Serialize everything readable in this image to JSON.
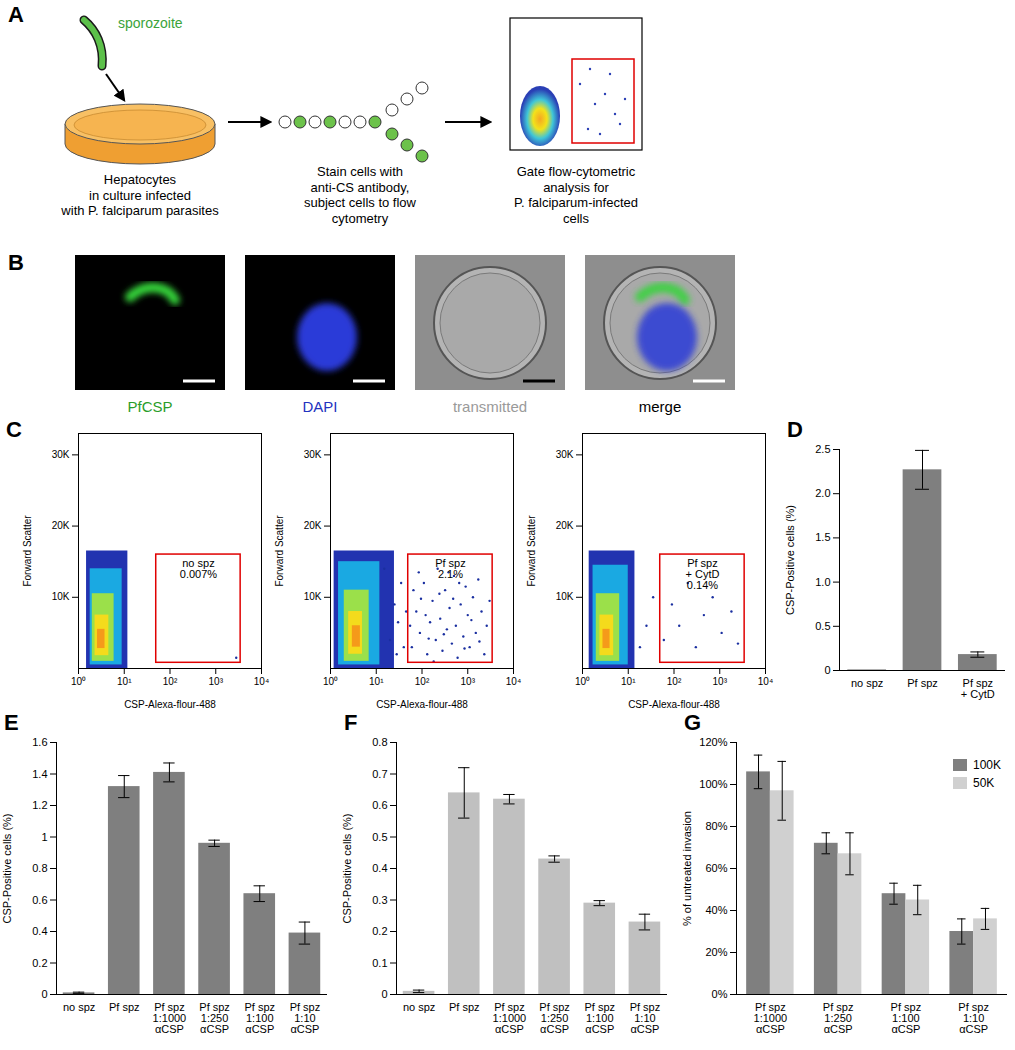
{
  "diagram": {
    "label": "A",
    "sporozoite": "sporozoite",
    "steps": [
      "Hepatocytes\nin culture infected\nwith P. falciparum parasites",
      "Stain cells with\nanti-CS antibody,\nsubject cells to flow\ncytometry",
      "Gate flow-cytometric\nanalysis for\nP. falciparum-infected\ncells"
    ]
  },
  "images": {
    "label": "B",
    "panels": [
      "PfCSP",
      "DAPI",
      "transmitted",
      "merge"
    ]
  },
  "chart_data": [
    {
      "type": "scatter",
      "title": "C",
      "x_label": "CSP-Alexa-flour-488",
      "y_label": "Forward Scatter",
      "log": "x",
      "xlim": [
        1,
        10000
      ],
      "ylim": [
        0,
        33000
      ],
      "xticks": [
        {
          "value": 1,
          "label": "10⁰"
        },
        {
          "value": 10,
          "label": "10¹"
        },
        {
          "value": 100,
          "label": "10²"
        },
        {
          "value": 1000,
          "label": "10³"
        },
        {
          "value": 10000,
          "label": "10⁴"
        }
      ],
      "yticks": [
        {
          "value": 10000,
          "label": "10K"
        },
        {
          "value": 20000,
          "label": "20K"
        },
        {
          "value": 30000,
          "label": "30K"
        }
      ],
      "density_cells": [
        {
          "x": [
            1.5,
            12
          ],
          "y": [
            0,
            16500
          ],
          "density": 0.1
        },
        {
          "x": [
            1.8,
            9
          ],
          "y": [
            500,
            14000
          ],
          "density": 0.3
        },
        {
          "x": [
            2,
            6
          ],
          "y": [
            1000,
            10500
          ],
          "density": 0.55
        },
        {
          "x": [
            2.3,
            4.6
          ],
          "y": [
            1800,
            7500
          ],
          "density": 0.8
        },
        {
          "x": [
            2.6,
            3.8
          ],
          "y": [
            2800,
            5500
          ],
          "density": 1
        }
      ],
      "points": [
        [
          2800,
          1500
        ]
      ],
      "gate": {
        "x": [
          50,
          3500
        ],
        "y": [
          800,
          16000
        ]
      },
      "annotations": [
        "no spz",
        "0.007%"
      ]
    },
    {
      "type": "scatter",
      "x_label": "CSP-Alexa-flour-488",
      "y_label": "Forward Scatter",
      "log": "x",
      "xlim": [
        1,
        10000
      ],
      "ylim": [
        0,
        33000
      ],
      "xticks": [
        {
          "value": 1,
          "label": "10⁰"
        },
        {
          "value": 10,
          "label": "10¹"
        },
        {
          "value": 100,
          "label": "10²"
        },
        {
          "value": 1000,
          "label": "10³"
        },
        {
          "value": 10000,
          "label": "10⁴"
        }
      ],
      "yticks": [
        {
          "value": 10000,
          "label": "10K"
        },
        {
          "value": 20000,
          "label": "20K"
        },
        {
          "value": 30000,
          "label": "30K"
        }
      ],
      "density_cells": [
        {
          "x": [
            1.2,
            25
          ],
          "y": [
            0,
            16500
          ],
          "density": 0.1
        },
        {
          "x": [
            1.5,
            12
          ],
          "y": [
            500,
            15000
          ],
          "density": 0.3
        },
        {
          "x": [
            2,
            7
          ],
          "y": [
            1000,
            11000
          ],
          "density": 0.55
        },
        {
          "x": [
            2.5,
            5
          ],
          "y": [
            2000,
            8000
          ],
          "density": 0.8
        },
        {
          "x": [
            3,
            4.5
          ],
          "y": [
            3000,
            6000
          ],
          "density": 1
        }
      ],
      "points": [
        [
          60,
          3000
        ],
        [
          75,
          8000
        ],
        [
          90,
          5000
        ],
        [
          110,
          12000
        ],
        [
          130,
          2000
        ],
        [
          150,
          6500
        ],
        [
          170,
          9500
        ],
        [
          200,
          4000
        ],
        [
          220,
          14000
        ],
        [
          250,
          7000
        ],
        [
          280,
          2500
        ],
        [
          320,
          11000
        ],
        [
          350,
          5500
        ],
        [
          400,
          8500
        ],
        [
          450,
          3500
        ],
        [
          500,
          13000
        ],
        [
          550,
          6000
        ],
        [
          600,
          1500
        ],
        [
          700,
          9000
        ],
        [
          800,
          4500
        ],
        [
          900,
          11500
        ],
        [
          1000,
          7500
        ],
        [
          1100,
          3000
        ],
        [
          1300,
          10000
        ],
        [
          1500,
          5000
        ],
        [
          1700,
          12500
        ],
        [
          2000,
          8000
        ],
        [
          2300,
          2000
        ],
        [
          2600,
          6000
        ],
        [
          3000,
          9500
        ],
        [
          65,
          11000
        ],
        [
          85,
          13500
        ],
        [
          120,
          7500
        ],
        [
          180,
          1000
        ],
        [
          240,
          10500
        ],
        [
          300,
          4800
        ],
        [
          380,
          13500
        ],
        [
          480,
          9800
        ],
        [
          650,
          12000
        ],
        [
          850,
          2800
        ],
        [
          1200,
          6800
        ],
        [
          1800,
          3800
        ],
        [
          140,
          4200
        ],
        [
          95,
          9800
        ],
        [
          55,
          6000
        ],
        [
          20,
          4000
        ],
        [
          25,
          9000
        ],
        [
          30,
          6500
        ],
        [
          35,
          12000
        ],
        [
          40,
          3000
        ],
        [
          45,
          8000
        ],
        [
          15,
          14000
        ],
        [
          28,
          2000
        ]
      ],
      "gate": {
        "x": [
          50,
          3500
        ],
        "y": [
          800,
          16000
        ]
      },
      "annotations": [
        "Pf spz",
        "2.1%"
      ]
    },
    {
      "type": "scatter",
      "x_label": "CSP-Alexa-flour-488",
      "y_label": "Forward Scatter",
      "log": "x",
      "xlim": [
        1,
        10000
      ],
      "ylim": [
        0,
        33000
      ],
      "xticks": [
        {
          "value": 1,
          "label": "10⁰"
        },
        {
          "value": 10,
          "label": "10¹"
        },
        {
          "value": 100,
          "label": "10²"
        },
        {
          "value": 1000,
          "label": "10³"
        },
        {
          "value": 10000,
          "label": "10⁴"
        }
      ],
      "yticks": [
        {
          "value": 10000,
          "label": "10K"
        },
        {
          "value": 20000,
          "label": "20K"
        },
        {
          "value": 30000,
          "label": "30K"
        }
      ],
      "density_cells": [
        {
          "x": [
            1.4,
            14
          ],
          "y": [
            0,
            16500
          ],
          "density": 0.1
        },
        {
          "x": [
            1.7,
            10
          ],
          "y": [
            500,
            14500
          ],
          "density": 0.3
        },
        {
          "x": [
            2,
            6.5
          ],
          "y": [
            1000,
            10500
          ],
          "density": 0.55
        },
        {
          "x": [
            2.4,
            4.8
          ],
          "y": [
            1800,
            7500
          ],
          "density": 0.8
        },
        {
          "x": [
            2.8,
            4
          ],
          "y": [
            2800,
            5500
          ],
          "density": 1
        }
      ],
      "points": [
        [
          60,
          4000
        ],
        [
          90,
          9000
        ],
        [
          130,
          6000
        ],
        [
          200,
          12000
        ],
        [
          300,
          3000
        ],
        [
          450,
          7500
        ],
        [
          700,
          10000
        ],
        [
          1100,
          5000
        ],
        [
          1800,
          8000
        ],
        [
          2500,
          3500
        ],
        [
          25,
          6000
        ],
        [
          35,
          10000
        ],
        [
          18,
          3000
        ]
      ],
      "gate": {
        "x": [
          50,
          3500
        ],
        "y": [
          800,
          16000
        ]
      },
      "annotations": [
        "Pf spz\n+ CytD",
        "0.14%"
      ]
    },
    {
      "type": "bar",
      "title": "D",
      "categories": [
        "no spz",
        "Pf spz",
        "Pf spz\n+ CytD"
      ],
      "values": [
        0.007,
        2.27,
        0.18
      ],
      "errors": [
        null,
        0.22,
        0.03
      ],
      "color": "#7f7f7f",
      "y_label": "CSP-Positive cells (%)",
      "ylim": [
        0,
        2.5
      ],
      "yticks": [
        0,
        0.5,
        {
          "value": 1,
          "label": "1.0"
        },
        1.5,
        {
          "value": 2,
          "label": "2.0"
        },
        2.5
      ]
    },
    {
      "type": "bar",
      "title": "E",
      "categories": [
        "no spz",
        "Pf spz",
        "Pf spz\n1:1000\nαCSP",
        "Pf spz\n1:250\nαCSP",
        "Pf spz\n1:100\nαCSP",
        "Pf spz\n1:10\nαCSP"
      ],
      "values": [
        0.01,
        1.32,
        1.41,
        0.96,
        0.64,
        0.39
      ],
      "errors": [
        0.005,
        0.07,
        0.06,
        0.02,
        0.05,
        0.07
      ],
      "color": "#7f7f7f",
      "y_label": "CSP-Positive cells (%)",
      "ylim": [
        0,
        1.6
      ],
      "yticks": [
        0,
        0.2,
        0.4,
        0.6,
        0.8,
        1,
        1.2,
        1.4,
        1.6
      ]
    },
    {
      "type": "bar",
      "title": "F",
      "categories": [
        "no spz",
        "Pf spz",
        "Pf spz\n1:1000\nαCSP",
        "Pf spz\n1:250\nαCSP",
        "Pf spz\n1:100\nαCSP",
        "Pf spz\n1:10\nαCSP"
      ],
      "values": [
        0.01,
        0.64,
        0.62,
        0.43,
        0.29,
        0.23
      ],
      "errors": [
        0.004,
        0.08,
        0.015,
        0.01,
        0.008,
        0.025
      ],
      "color": "#c0c0c0",
      "y_label": "CSP-Positive cells (%)",
      "ylim": [
        0,
        0.8
      ],
      "yticks": [
        0,
        0.1,
        0.2,
        0.3,
        0.4,
        0.5,
        0.6,
        0.7,
        0.8
      ]
    },
    {
      "type": "bar",
      "title": "G",
      "categories": [
        "Pf spz\n1:1000\nαCSP",
        "Pf spz\n1:250\nαCSP",
        "Pf spz\n1:100\nαCSP",
        "Pf spz\n1:10\nαCSP"
      ],
      "series": [
        {
          "name": "100K",
          "color": "#7f7f7f",
          "values": [
            106,
            72,
            48,
            30
          ],
          "errors": [
            8,
            5,
            5,
            6
          ]
        },
        {
          "name": "50K",
          "color": "#d0d0d0",
          "values": [
            97,
            67,
            45,
            36
          ],
          "errors": [
            14,
            10,
            7,
            5
          ]
        }
      ],
      "y_label": "% of untreated invasion",
      "ylim": [
        0,
        120
      ],
      "yticks": [
        {
          "value": 0,
          "label": "0%"
        },
        {
          "value": 20,
          "label": "20%"
        },
        {
          "value": 40,
          "label": "40%"
        },
        {
          "value": 60,
          "label": "60%"
        },
        {
          "value": 80,
          "label": "80%"
        },
        {
          "value": 100,
          "label": "100%"
        },
        {
          "value": 120,
          "label": "120%"
        }
      ],
      "legend": "top-right"
    }
  ]
}
